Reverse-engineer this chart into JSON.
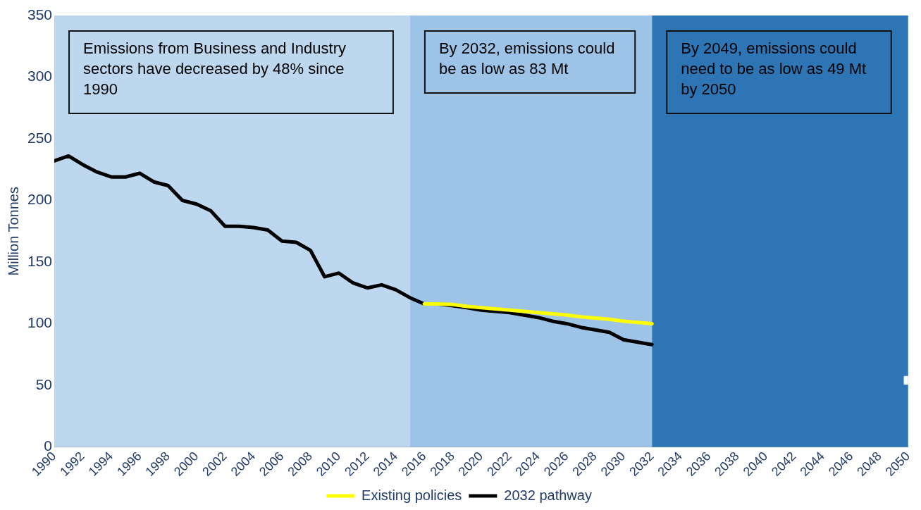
{
  "chart_data": {
    "type": "line",
    "ylabel": "Million Tonnes",
    "xlim": [
      1990,
      2050
    ],
    "xticks": [
      1990,
      1992,
      1994,
      1996,
      1998,
      2000,
      2002,
      2004,
      2006,
      2008,
      2010,
      2012,
      2014,
      2016,
      2018,
      2020,
      2022,
      2024,
      2026,
      2028,
      2030,
      2032,
      2034,
      2036,
      2038,
      2040,
      2042,
      2044,
      2046,
      2048,
      2050
    ],
    "ylim": [
      0,
      350
    ],
    "yticks": [
      0,
      50,
      100,
      150,
      200,
      250,
      300,
      350
    ],
    "grid": false,
    "legend": "bottom",
    "marker": "none",
    "line_style": "solid",
    "series": [
      {
        "name": "Existing policies",
        "color": "#ffff00",
        "x": [
          2016,
          2017,
          2018,
          2019,
          2020,
          2021,
          2022,
          2023,
          2024,
          2025,
          2026,
          2027,
          2028,
          2029,
          2030,
          2031,
          2032
        ],
        "values": [
          116,
          116,
          115.5,
          114,
          113,
          112,
          111,
          110,
          109,
          108,
          107,
          105.5,
          104.5,
          103.5,
          102,
          101,
          100
        ]
      },
      {
        "name": "2032 pathway",
        "color": "#000000",
        "x": [
          1990,
          1991,
          1992,
          1993,
          1994,
          1995,
          1996,
          1997,
          1998,
          1999,
          2000,
          2001,
          2002,
          2003,
          2004,
          2005,
          2006,
          2007,
          2008,
          2009,
          2010,
          2011,
          2012,
          2013,
          2014,
          2015,
          2016,
          2017,
          2018,
          2019,
          2020,
          2021,
          2022,
          2023,
          2024,
          2025,
          2026,
          2027,
          2028,
          2029,
          2030,
          2031,
          2032
        ],
        "values": [
          232,
          236,
          229,
          223,
          219,
          219,
          222,
          215,
          212,
          200,
          197,
          191.5,
          179,
          179,
          178,
          176,
          167,
          166,
          159.5,
          138,
          141,
          133,
          129,
          131.5,
          127.5,
          121,
          116,
          116,
          114.5,
          113,
          111,
          110,
          109,
          107,
          105,
          102,
          100,
          97,
          95,
          93,
          87,
          85,
          83
        ]
      },
      {
        "type": "scatter",
        "color": "#ffffff",
        "marker": "square",
        "x": [
          2050
        ],
        "values": [
          54
        ]
      }
    ],
    "bands": [
      {
        "axis": "x",
        "from": 1990,
        "to": 2015,
        "color": "#bdd7ee"
      },
      {
        "axis": "x",
        "from": 2015,
        "to": 2032,
        "color": "#9dc3e6"
      },
      {
        "axis": "x",
        "from": 2032,
        "to": 2050,
        "color": "#2e75b6"
      }
    ],
    "annotations": [
      "Emissions from Business and Industry sectors have decreased by 48% since 1990",
      "By 2032, emissions could be as low as 83 Mt",
      "By 2049, emissions could need to be as low as 49 Mt by 2050"
    ]
  }
}
